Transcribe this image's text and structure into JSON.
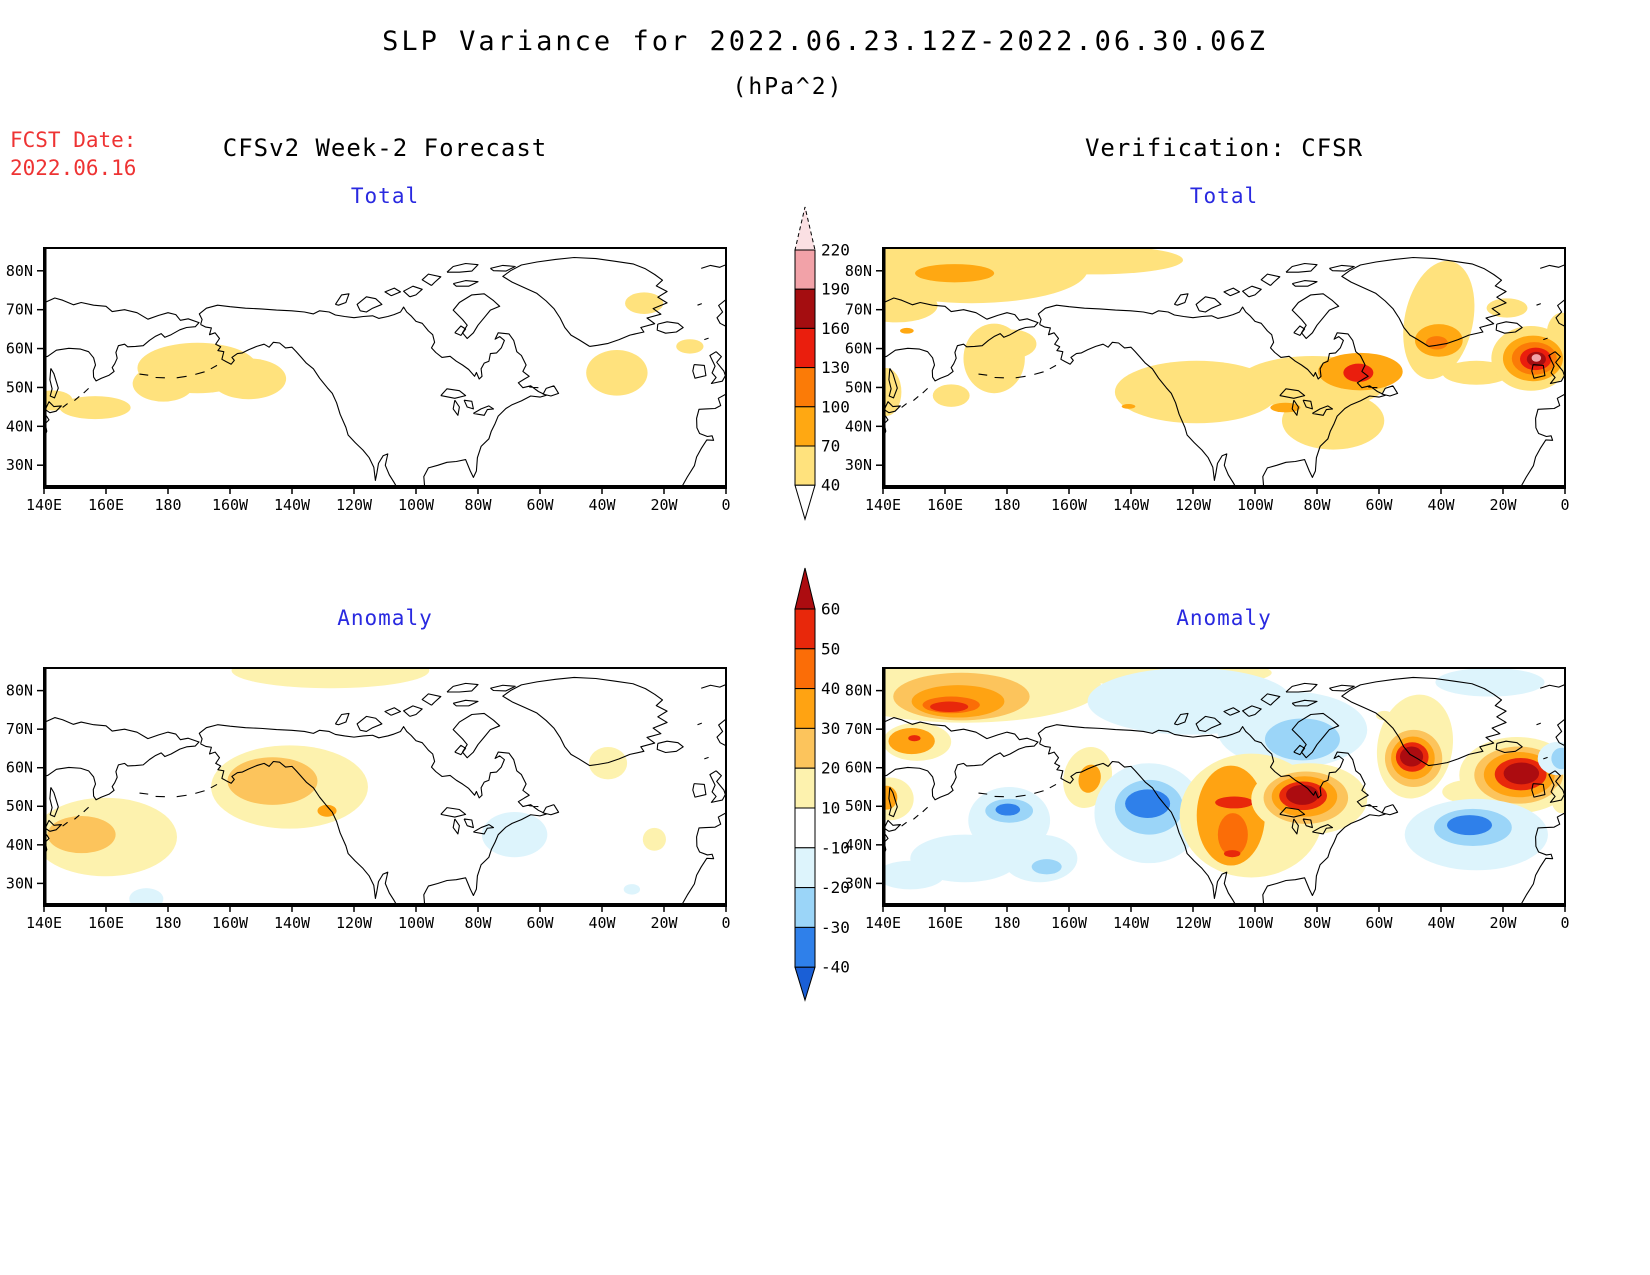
{
  "header": {
    "title": "SLP Variance for 2022.06.23.12Z-2022.06.30.06Z",
    "subtitle": "(hPa^2)",
    "fcst_date_label": "FCST Date:",
    "fcst_date_value": "2022.06.16",
    "left_column_title": "CFSv2 Week-2 Forecast",
    "right_column_title": "Verification: CFSR"
  },
  "colors": {
    "panel_title": "#2929e0",
    "fcst_date": "#ee3333",
    "coastline": "#000000",
    "background": "#ffffff"
  },
  "chart_data": {
    "type": "filled_contour_map",
    "projection": "equirectangular",
    "region": "Northern Hemisphere 140E eastward to 0, ~25N-85N",
    "units": "hPa^2",
    "x_ticks": [
      "140E",
      "160E",
      "180",
      "160W",
      "140W",
      "120W",
      "100W",
      "80W",
      "60W",
      "40W",
      "20W",
      "0"
    ],
    "y_ticks": [
      "80N",
      "70N",
      "60N",
      "50N",
      "40N",
      "30N"
    ],
    "palette": {
      "t40": "#FFE27D",
      "t70": "#FFA812",
      "t100": "#FB7B07",
      "t130": "#EA1E0D",
      "t160": "#A40D10",
      "t190": "#F2A2A8",
      "t220": "#FBE0E3",
      "y1": "#FDF2AE",
      "y2": "#FCC45C",
      "y3": "#FFA312",
      "y4": "#FB6D07",
      "y5": "#E8280B",
      "y6": "#AC0C10",
      "c1": "#DDF4FC",
      "c2": "#9BD5F8",
      "c3": "#2F80EA",
      "c4": "#1A5FD6"
    },
    "scales": {
      "total": {
        "tick_labels": [
          "220",
          "190",
          "160",
          "130",
          "100",
          "70",
          "40"
        ],
        "segment_colors_top_to_bottom": [
          "#F2A2A8",
          "#A40D10",
          "#EA1E0D",
          "#FB7B07",
          "#FFA812",
          "#FFE27D"
        ],
        "above_top_color": "#FBE0E3",
        "below_bottom_color": "#FFFFFF"
      },
      "anomaly": {
        "tick_labels": [
          "60",
          "50",
          "40",
          "30",
          "20",
          "10",
          "-10",
          "-20",
          "-30",
          "-40"
        ],
        "segment_colors_top_to_bottom": [
          "#E8280B",
          "#FB6D07",
          "#FFA312",
          "#FCC45C",
          "#FDF2AE",
          "#FFFFFF",
          "#DDF4FC",
          "#9BD5F8",
          "#2F80EA"
        ],
        "above_top_color": "#AC0C10",
        "below_bottom_color": "#1A5FD6"
      }
    },
    "panels": [
      {
        "id": "forecast-total",
        "title": "Total",
        "scale": "total",
        "features": [
          [
            0.225,
            0.5,
            0.088,
            0.105,
            0,
            "t40"
          ],
          [
            0.3,
            0.545,
            0.055,
            0.085,
            0,
            "t40"
          ],
          [
            0.175,
            0.565,
            0.045,
            0.075,
            0,
            "t40"
          ],
          [
            0.075,
            0.665,
            0.052,
            0.048,
            0,
            "t40"
          ],
          [
            0.012,
            0.635,
            0.03,
            0.042,
            0,
            "t40"
          ],
          [
            0.84,
            0.52,
            0.045,
            0.095,
            0,
            "t40"
          ],
          [
            0.88,
            0.23,
            0.028,
            0.045,
            0,
            "t40"
          ],
          [
            0.947,
            0.41,
            0.02,
            0.03,
            0,
            "t40"
          ]
        ]
      },
      {
        "id": "verification-total",
        "title": "Total",
        "scale": "total",
        "features": [
          [
            0.13,
            0.09,
            0.17,
            0.14,
            0,
            "t40"
          ],
          [
            0.31,
            0.05,
            0.13,
            0.06,
            0,
            "t40"
          ],
          [
            0.02,
            0.24,
            0.06,
            0.07,
            0,
            "t40"
          ],
          [
            0.163,
            0.46,
            0.045,
            0.145,
            0,
            "t40"
          ],
          [
            0.19,
            0.4,
            0.035,
            0.06,
            0,
            "t40"
          ],
          [
            0.1,
            0.615,
            0.027,
            0.047,
            0,
            "t40"
          ],
          [
            0.005,
            0.6,
            0.022,
            0.1,
            0,
            "t40"
          ],
          [
            0.46,
            0.6,
            0.12,
            0.13,
            0,
            "t40"
          ],
          [
            0.63,
            0.56,
            0.11,
            0.11,
            0,
            "t40"
          ],
          [
            0.66,
            0.72,
            0.075,
            0.12,
            0,
            "t40"
          ],
          [
            0.815,
            0.3,
            0.05,
            0.25,
            12,
            "t40"
          ],
          [
            0.87,
            0.52,
            0.05,
            0.05,
            0,
            "t40"
          ],
          [
            0.95,
            0.46,
            0.058,
            0.135,
            0,
            "t40"
          ],
          [
            0.915,
            0.25,
            0.03,
            0.04,
            0,
            "t40"
          ],
          [
            0.995,
            0.36,
            0.022,
            0.09,
            0,
            "t40"
          ],
          [
            0.105,
            0.105,
            0.058,
            0.038,
            0,
            "t70"
          ],
          [
            0.035,
            0.345,
            0.01,
            0.012,
            0,
            "t70"
          ],
          [
            0.59,
            0.665,
            0.022,
            0.02,
            0,
            "t70"
          ],
          [
            0.36,
            0.66,
            0.01,
            0.01,
            0,
            "t70"
          ],
          [
            0.7,
            0.515,
            0.062,
            0.078,
            0,
            "t70"
          ],
          [
            0.815,
            0.385,
            0.035,
            0.068,
            0,
            "t70"
          ],
          [
            0.953,
            0.46,
            0.044,
            0.095,
            0,
            "t70"
          ],
          [
            0.812,
            0.395,
            0.016,
            0.028,
            0,
            "t100"
          ],
          [
            0.955,
            0.46,
            0.033,
            0.068,
            0,
            "t100"
          ],
          [
            0.697,
            0.52,
            0.022,
            0.038,
            0,
            "t130"
          ],
          [
            0.957,
            0.462,
            0.023,
            0.047,
            0,
            "t130"
          ],
          [
            0.958,
            0.463,
            0.014,
            0.03,
            0,
            "t160"
          ],
          [
            0.958,
            0.458,
            0.007,
            0.016,
            0,
            "t190"
          ]
        ]
      },
      {
        "id": "forecast-anomaly",
        "title": "Anomaly",
        "scale": "anomaly",
        "features": [
          [
            0.42,
            0.01,
            0.145,
            0.075,
            0,
            "y1"
          ],
          [
            0.36,
            0.5,
            0.115,
            0.175,
            0,
            "y1"
          ],
          [
            0.09,
            0.71,
            0.105,
            0.165,
            0,
            "y1"
          ],
          [
            0.827,
            0.4,
            0.028,
            0.068,
            0,
            "y1"
          ],
          [
            0.895,
            0.72,
            0.017,
            0.048,
            0,
            "y1"
          ],
          [
            0.335,
            0.475,
            0.066,
            0.1,
            0,
            "y2"
          ],
          [
            0.055,
            0.7,
            0.05,
            0.078,
            0,
            "y2"
          ],
          [
            0.415,
            0.6,
            0.014,
            0.025,
            0,
            "y3"
          ],
          [
            0.69,
            0.7,
            0.048,
            0.095,
            0,
            "c1"
          ],
          [
            0.15,
            0.97,
            0.025,
            0.045,
            0,
            "c1"
          ],
          [
            0.862,
            0.93,
            0.012,
            0.022,
            0,
            "c1"
          ]
        ]
      },
      {
        "id": "verification-anomaly",
        "title": "Anomaly",
        "scale": "anomaly",
        "features": [
          [
            0.12,
            0.08,
            0.2,
            0.15,
            0,
            "y1"
          ],
          [
            0.42,
            0.02,
            0.15,
            0.06,
            0,
            "y1"
          ],
          [
            0.115,
            0.12,
            0.1,
            0.1,
            0,
            "y2"
          ],
          [
            0.11,
            0.14,
            0.068,
            0.068,
            0,
            "y3"
          ],
          [
            0.1,
            0.155,
            0.042,
            0.035,
            0,
            "y4"
          ],
          [
            0.097,
            0.163,
            0.028,
            0.022,
            0,
            "y5"
          ],
          [
            0.05,
            0.31,
            0.05,
            0.08,
            0,
            "y1"
          ],
          [
            0.042,
            0.307,
            0.034,
            0.055,
            0,
            "y3"
          ],
          [
            0.046,
            0.295,
            0.009,
            0.013,
            0,
            "y5"
          ],
          [
            0.3,
            0.46,
            0.035,
            0.13,
            15,
            "y1"
          ],
          [
            0.303,
            0.465,
            0.016,
            0.06,
            15,
            "y3"
          ],
          [
            0.01,
            0.55,
            0.035,
            0.09,
            0,
            "y1"
          ],
          [
            0.005,
            0.545,
            0.016,
            0.05,
            0,
            "y3"
          ],
          [
            0.45,
            0.14,
            0.15,
            0.14,
            0,
            "c1"
          ],
          [
            0.6,
            0.26,
            0.11,
            0.16,
            0,
            "c1"
          ],
          [
            0.615,
            0.3,
            0.055,
            0.088,
            0,
            "c2"
          ],
          [
            0.185,
            0.64,
            0.06,
            0.14,
            0,
            "c1"
          ],
          [
            0.185,
            0.6,
            0.035,
            0.05,
            0,
            "c2"
          ],
          [
            0.183,
            0.595,
            0.018,
            0.025,
            0,
            "c3"
          ],
          [
            0.12,
            0.8,
            0.08,
            0.1,
            0,
            "c1"
          ],
          [
            0.23,
            0.8,
            0.055,
            0.1,
            0,
            "c1"
          ],
          [
            0.24,
            0.835,
            0.022,
            0.032,
            0,
            "c2"
          ],
          [
            0.39,
            0.61,
            0.08,
            0.21,
            0,
            "c1"
          ],
          [
            0.39,
            0.585,
            0.05,
            0.115,
            0,
            "c2"
          ],
          [
            0.388,
            0.57,
            0.033,
            0.06,
            0,
            "c3"
          ],
          [
            0.54,
            0.62,
            0.105,
            0.26,
            0,
            "y1"
          ],
          [
            0.51,
            0.62,
            0.05,
            0.21,
            0,
            "y3"
          ],
          [
            0.515,
            0.565,
            0.028,
            0.025,
            0,
            "y5"
          ],
          [
            0.513,
            0.7,
            0.022,
            0.09,
            0,
            "y4"
          ],
          [
            0.512,
            0.78,
            0.012,
            0.015,
            0,
            "y5"
          ],
          [
            0.625,
            0.55,
            0.085,
            0.15,
            0,
            "y1"
          ],
          [
            0.62,
            0.545,
            0.062,
            0.11,
            0,
            "y2"
          ],
          [
            0.618,
            0.54,
            0.048,
            0.085,
            0,
            "y3"
          ],
          [
            0.616,
            0.537,
            0.035,
            0.06,
            0,
            "y5"
          ],
          [
            0.615,
            0.533,
            0.024,
            0.042,
            0,
            "y6"
          ],
          [
            0.78,
            0.33,
            0.055,
            0.22,
            10,
            "y1"
          ],
          [
            0.778,
            0.38,
            0.042,
            0.12,
            0,
            "y2"
          ],
          [
            0.777,
            0.378,
            0.032,
            0.09,
            0,
            "y3"
          ],
          [
            0.776,
            0.374,
            0.024,
            0.062,
            0,
            "y5"
          ],
          [
            0.775,
            0.372,
            0.017,
            0.042,
            0,
            "y6"
          ],
          [
            0.86,
            0.52,
            0.04,
            0.05,
            0,
            "y1"
          ],
          [
            0.93,
            0.45,
            0.085,
            0.16,
            0,
            "y1"
          ],
          [
            0.932,
            0.45,
            0.065,
            0.12,
            0,
            "y2"
          ],
          [
            0.933,
            0.448,
            0.052,
            0.095,
            0,
            "y3"
          ],
          [
            0.935,
            0.446,
            0.038,
            0.068,
            0,
            "y5"
          ],
          [
            0.936,
            0.443,
            0.026,
            0.046,
            0,
            "y6"
          ],
          [
            0.87,
            0.7,
            0.105,
            0.15,
            0,
            "c1"
          ],
          [
            0.865,
            0.67,
            0.057,
            0.078,
            0,
            "c2"
          ],
          [
            0.86,
            0.66,
            0.033,
            0.042,
            0,
            "c3"
          ],
          [
            0.99,
            0.38,
            0.03,
            0.07,
            0,
            "c1"
          ],
          [
            0.995,
            0.38,
            0.015,
            0.045,
            0,
            "c2"
          ],
          [
            0.89,
            0.06,
            0.08,
            0.06,
            0,
            "c1"
          ],
          [
            0.04,
            0.87,
            0.05,
            0.06,
            0,
            "c1"
          ],
          [
            0.995,
            0.55,
            0.015,
            0.06,
            0,
            "y1"
          ],
          [
            0.735,
            0.2,
            0.012,
            0.02,
            0,
            "y1"
          ]
        ]
      }
    ]
  }
}
